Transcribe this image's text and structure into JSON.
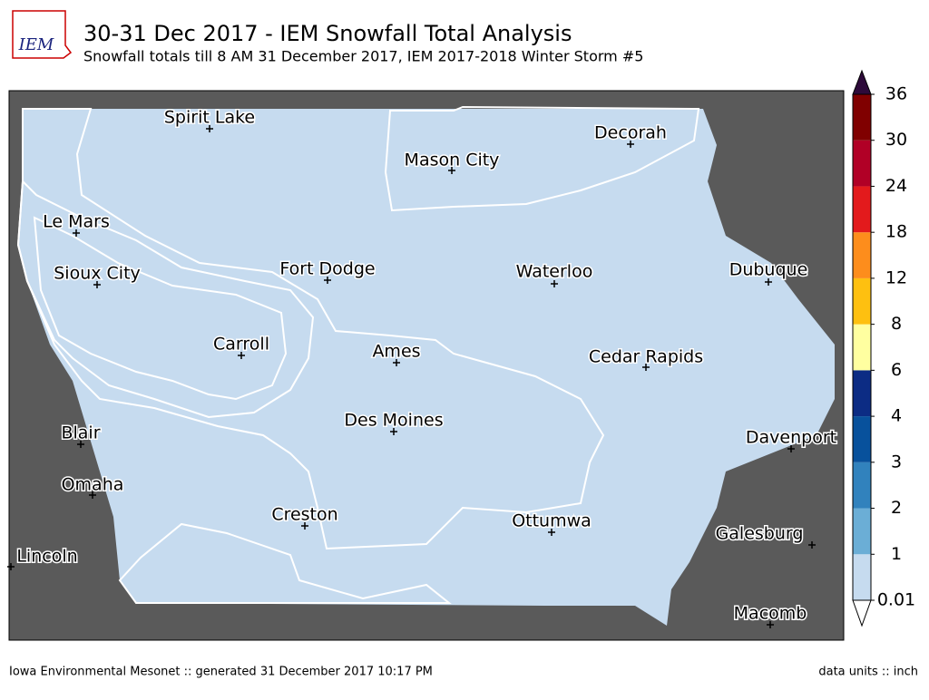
{
  "header": {
    "logo": "IEM",
    "title": "30-31 Dec 2017 - IEM Snowfall Total Analysis",
    "subtitle": "Snowfall totals till 8 AM 31 December 2017, IEM 2017-2018 Winter Storm #5"
  },
  "cities": [
    "Spirit Lake",
    "Decorah",
    "Mason City",
    "Le Mars",
    "Sioux City",
    "Fort Dodge",
    "Waterloo",
    "Dubuque",
    "Carroll",
    "Ames",
    "Cedar Rapids",
    "Des Moines",
    "Blair",
    "Davenport",
    "Omaha",
    "Creston",
    "Ottumwa",
    "Galesburg",
    "Lincoln",
    "Macomb"
  ],
  "colorbar": {
    "levels": [
      0.01,
      1,
      2,
      3,
      4,
      6,
      8,
      12,
      18,
      24,
      30,
      36
    ],
    "colors": [
      "#c6dbef",
      "#6baed6",
      "#3182bd",
      "#08519c",
      "#0c2c84",
      "#ffffa0",
      "#fec010",
      "#fd8d1c",
      "#e31a1c",
      "#b10026",
      "#800000"
    ],
    "over_color": "#2d0a3a",
    "under_color": "#ffffff"
  },
  "footer": {
    "left": "Iowa Environmental Mesonet :: generated 31 December 2017 10:17 PM",
    "right": "data units :: inch"
  }
}
